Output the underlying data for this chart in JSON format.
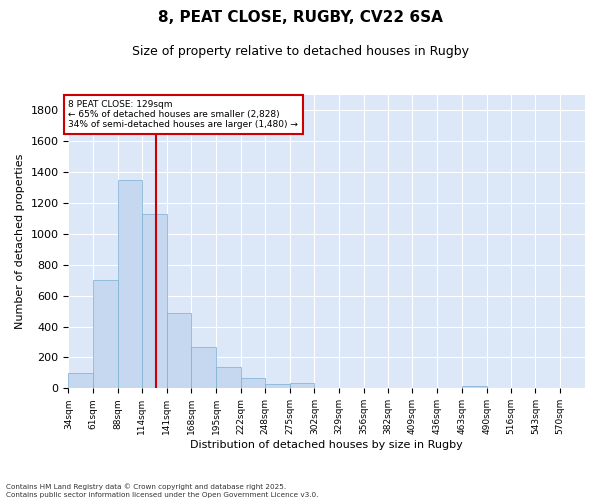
{
  "title_line1": "8, PEAT CLOSE, RUGBY, CV22 6SA",
  "title_line2": "Size of property relative to detached houses in Rugby",
  "xlabel": "Distribution of detached houses by size in Rugby",
  "ylabel": "Number of detached properties",
  "bin_labels": [
    "34sqm",
    "61sqm",
    "88sqm",
    "114sqm",
    "141sqm",
    "168sqm",
    "195sqm",
    "222sqm",
    "248sqm",
    "275sqm",
    "302sqm",
    "329sqm",
    "356sqm",
    "382sqm",
    "409sqm",
    "436sqm",
    "463sqm",
    "490sqm",
    "516sqm",
    "543sqm",
    "570sqm"
  ],
  "bin_left_edges": [
    34,
    61,
    88,
    114,
    141,
    168,
    195,
    222,
    248,
    275,
    302,
    329,
    356,
    382,
    409,
    436,
    463,
    490,
    516,
    543,
    570
  ],
  "bar_heights": [
    100,
    700,
    1350,
    1130,
    490,
    270,
    140,
    65,
    30,
    35,
    0,
    0,
    0,
    0,
    0,
    0,
    15,
    0,
    0,
    0,
    0
  ],
  "bar_color": "#c5d8f0",
  "bar_edge_color": "#7aadd4",
  "property_size": 129,
  "vline_color": "#cc0000",
  "annotation_text": "8 PEAT CLOSE: 129sqm\n← 65% of detached houses are smaller (2,828)\n34% of semi-detached houses are larger (1,480) →",
  "annotation_box_color": "#cc0000",
  "annotation_fill": "#ffffff",
  "ylim": [
    0,
    1900
  ],
  "yticks": [
    0,
    200,
    400,
    600,
    800,
    1000,
    1200,
    1400,
    1600,
    1800
  ],
  "background_color": "#dce8f8",
  "grid_color": "#ffffff",
  "footnote": "Contains HM Land Registry data © Crown copyright and database right 2025.\nContains public sector information licensed under the Open Government Licence v3.0."
}
